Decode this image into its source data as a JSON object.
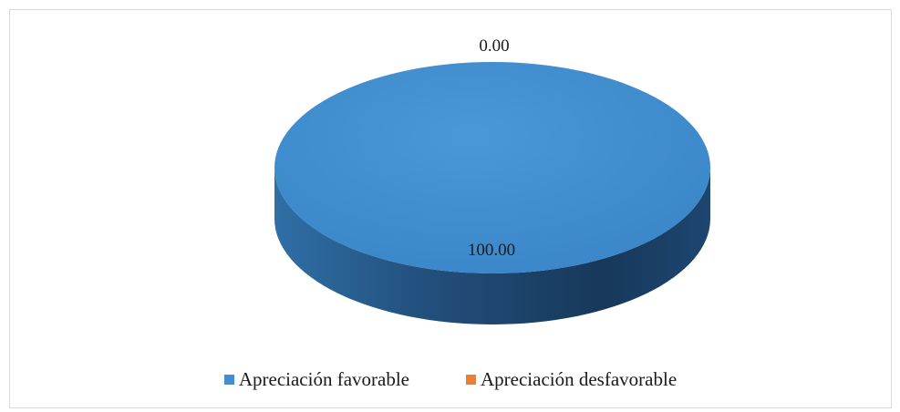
{
  "chart_data": {
    "type": "pie",
    "title": "",
    "categories": [
      "Apreciación favorable",
      "Apreciación desfavorable"
    ],
    "values": [
      100.0,
      0.0
    ],
    "data_labels": [
      "100.00",
      "0.00"
    ],
    "colors": [
      "#3f8fd2",
      "#ed7d31"
    ],
    "legend_position": "bottom",
    "style": "3d"
  },
  "legend": {
    "items": [
      {
        "label": "Apreciación favorable",
        "color": "#3f8fd2"
      },
      {
        "label": "Apreciación desfavorable",
        "color": "#ed7d31"
      }
    ]
  }
}
